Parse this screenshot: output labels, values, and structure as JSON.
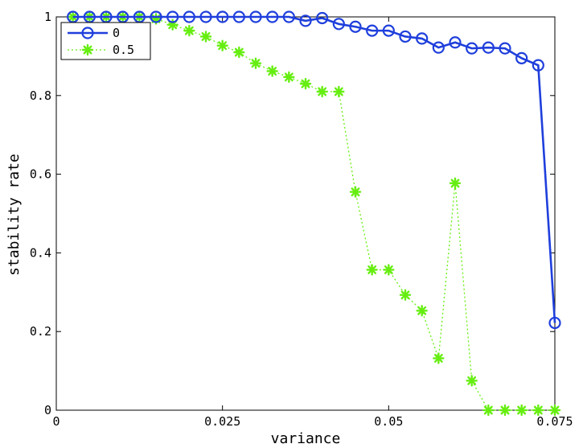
{
  "chart_data": {
    "type": "line",
    "xlabel": "variance",
    "ylabel": "stability rate",
    "xlim": [
      0,
      0.075
    ],
    "ylim": [
      0,
      1
    ],
    "x_ticks": [
      0,
      0.025,
      0.05,
      0.075
    ],
    "x_tick_labels": [
      "0",
      "0.025",
      "0.05",
      "0.075"
    ],
    "y_ticks": [
      0,
      0.2,
      0.4,
      0.6,
      0.8,
      1
    ],
    "y_tick_labels": [
      "0",
      "0.2",
      "0.4",
      "0.6",
      "0.8",
      "1"
    ],
    "grid": false,
    "legend_position": "top-left",
    "x": [
      0.0025,
      0.005,
      0.0075,
      0.01,
      0.0125,
      0.015,
      0.0175,
      0.02,
      0.0225,
      0.025,
      0.0275,
      0.03,
      0.0325,
      0.035,
      0.0375,
      0.04,
      0.0425,
      0.045,
      0.0475,
      0.05,
      0.0525,
      0.055,
      0.0575,
      0.06,
      0.0625,
      0.065,
      0.0675,
      0.07,
      0.0725,
      0.075
    ],
    "series": [
      {
        "name": "0",
        "color": "#1f3fdc",
        "line_style": "solid",
        "marker": "circle",
        "values": [
          1,
          1,
          1,
          1,
          1,
          1,
          1,
          1,
          1,
          1,
          1,
          1,
          1,
          1,
          0.99,
          0.997,
          0.982,
          0.975,
          0.965,
          0.965,
          0.95,
          0.945,
          0.922,
          0.935,
          0.92,
          0.922,
          0.92,
          0.895,
          0.877,
          0.222
        ]
      },
      {
        "name": "0.5",
        "color": "#66ee11",
        "line_style": "dotted",
        "marker": "asterisk",
        "values": [
          1,
          1,
          1,
          1,
          1,
          0.995,
          0.98,
          0.965,
          0.95,
          0.927,
          0.91,
          0.882,
          0.862,
          0.847,
          0.83,
          0.81,
          0.81,
          0.555,
          0.357,
          0.357,
          0.293,
          0.253,
          0.132,
          0.577,
          0.075,
          0,
          0,
          0,
          0,
          0
        ]
      }
    ]
  }
}
